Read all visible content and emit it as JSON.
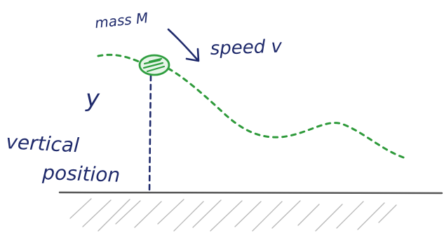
{
  "labels": {
    "mass": "mass M",
    "speed": "speed v",
    "y_symbol": "y",
    "vertical_line1": "vertical",
    "vertical_line2": "position"
  },
  "colors": {
    "ink_blue": "#1f2a6b",
    "path_green": "#2e9a3a",
    "ball_green": "#2f9e3f",
    "ground": "#555555",
    "hatch": "#b8b8b8"
  }
}
